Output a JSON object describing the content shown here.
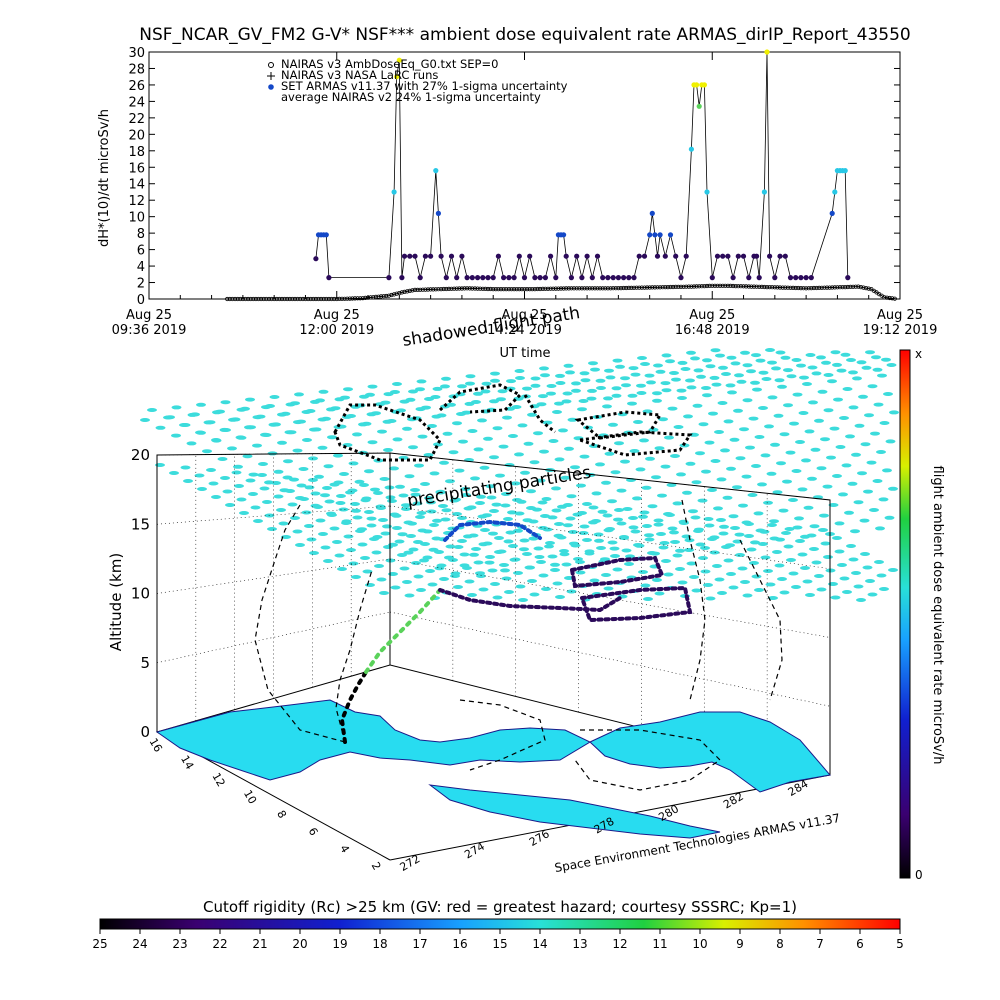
{
  "title": "NSF_NCAR_GV_FM2 G-V* NSF*** ambient dose equivalent rate ARMAS_dirIP_Report_43550",
  "colors": {
    "nairas_v3": "#000000",
    "armas_low": "#2b0a5a",
    "armas_mid": "#1448c8",
    "armas_cyan": "#28c8e6",
    "armas_green": "#5ad25a",
    "armas_yellow": "#f0f000",
    "shadow_grid": "#3cdcdc",
    "terrain": "#28dcf0"
  },
  "chart_data": [
    {
      "type": "line",
      "title": "NSF_NCAR_GV_FM2 G-V* NSF*** ambient dose equivalent rate ARMAS_dirIP_Report_43550",
      "ylabel": "dH*(10)/dt microSv/h",
      "xlabel": "UT time",
      "ylim": [
        0,
        30
      ],
      "yticks": [
        "0",
        "2",
        "4",
        "6",
        "8",
        "10",
        "12",
        "14",
        "16",
        "18",
        "20",
        "22",
        "24",
        "26",
        "28",
        "30"
      ],
      "xticks": [
        {
          "date": "Aug 25",
          "time": "09:36 2019"
        },
        {
          "date": "Aug 25",
          "time": "12:00 2019"
        },
        {
          "date": "Aug 25",
          "time": "14:24 2019"
        },
        {
          "date": "Aug 25",
          "time": "16:48 2019"
        },
        {
          "date": "Aug 25",
          "time": "19:12 2019"
        }
      ],
      "xlim": [
        "09:36",
        "19:12"
      ],
      "legend": [
        {
          "marker": "diamond",
          "label": "NAIRAS v3 AmbDoseEq_G0.txt SEP=0"
        },
        {
          "marker": "plus",
          "label": "NAIRAS v3 NASA LaRC runs"
        },
        {
          "marker": "dot",
          "label": "SET ARMAS v11.37 with 27% 1-sigma uncertainty"
        },
        {
          "marker": "none",
          "label": "average NAIRAS v2 24% 1-sigma uncertainty"
        }
      ],
      "legend_position": "top-left",
      "series": [
        {
          "name": "NAIRAS v3 AmbDoseEq_G0.txt SEP=0",
          "points": [
            [
              "10:36",
              0
            ],
            [
              "11:00",
              0
            ],
            [
              "11:30",
              0
            ],
            [
              "12:00",
              0
            ],
            [
              "12:20",
              0.1
            ],
            [
              "12:40",
              0.4
            ],
            [
              "12:50",
              0.8
            ],
            [
              "13:00",
              1.1
            ],
            [
              "13:20",
              1.2
            ],
            [
              "13:40",
              1.3
            ],
            [
              "14:00",
              1.2
            ],
            [
              "14:30",
              1.2
            ],
            [
              "15:00",
              1.3
            ],
            [
              "15:30",
              1.3
            ],
            [
              "16:00",
              1.4
            ],
            [
              "16:30",
              1.5
            ],
            [
              "16:48",
              1.6
            ],
            [
              "17:00",
              1.6
            ],
            [
              "17:20",
              1.5
            ],
            [
              "17:40",
              1.4
            ],
            [
              "18:00",
              1.3
            ],
            [
              "18:20",
              1.4
            ],
            [
              "18:40",
              1.5
            ],
            [
              "18:50",
              1.2
            ],
            [
              "19:00",
              0.2
            ],
            [
              "19:10",
              0
            ]
          ]
        },
        {
          "name": "SET ARMAS v11.37 with 27% 1-sigma uncertainty",
          "points": [
            [
              "11:44",
              4.9
            ],
            [
              "11:46",
              7.8
            ],
            [
              "11:48",
              7.8
            ],
            [
              "11:50",
              7.8
            ],
            [
              "11:52",
              7.8
            ],
            [
              "11:54",
              2.6
            ],
            [
              "12:40",
              2.6
            ],
            [
              "12:44",
              13
            ],
            [
              "12:46",
              27
            ],
            [
              "12:48",
              29
            ],
            [
              "12:50",
              2.6
            ],
            [
              "12:52",
              5.2
            ],
            [
              "12:56",
              5.2
            ],
            [
              "13:00",
              5.2
            ],
            [
              "13:04",
              2.6
            ],
            [
              "13:08",
              5.2
            ],
            [
              "13:12",
              5.2
            ],
            [
              "13:16",
              15.6
            ],
            [
              "13:18",
              10.4
            ],
            [
              "13:20",
              5.2
            ],
            [
              "13:24",
              2.6
            ],
            [
              "13:28",
              5.2
            ],
            [
              "13:32",
              2.6
            ],
            [
              "13:36",
              5.2
            ],
            [
              "13:40",
              2.6
            ],
            [
              "13:44",
              2.6
            ],
            [
              "13:48",
              2.6
            ],
            [
              "13:52",
              2.6
            ],
            [
              "13:56",
              2.6
            ],
            [
              "14:00",
              2.6
            ],
            [
              "14:04",
              5.2
            ],
            [
              "14:08",
              2.6
            ],
            [
              "14:12",
              2.6
            ],
            [
              "14:16",
              2.6
            ],
            [
              "14:20",
              5.2
            ],
            [
              "14:24",
              2.6
            ],
            [
              "14:28",
              5.2
            ],
            [
              "14:32",
              2.6
            ],
            [
              "14:36",
              2.6
            ],
            [
              "14:40",
              2.6
            ],
            [
              "14:44",
              5.2
            ],
            [
              "14:48",
              2.6
            ],
            [
              "14:50",
              7.8
            ],
            [
              "14:52",
              7.8
            ],
            [
              "14:54",
              7.8
            ],
            [
              "14:56",
              5.2
            ],
            [
              "15:00",
              2.6
            ],
            [
              "15:04",
              5.2
            ],
            [
              "15:08",
              2.6
            ],
            [
              "15:12",
              5.2
            ],
            [
              "15:16",
              2.6
            ],
            [
              "15:20",
              5.2
            ],
            [
              "15:24",
              2.6
            ],
            [
              "15:28",
              2.6
            ],
            [
              "15:32",
              2.6
            ],
            [
              "15:36",
              2.6
            ],
            [
              "15:40",
              2.6
            ],
            [
              "15:44",
              2.6
            ],
            [
              "15:48",
              2.6
            ],
            [
              "15:52",
              5.2
            ],
            [
              "15:56",
              5.2
            ],
            [
              "16:00",
              7.8
            ],
            [
              "16:02",
              10.4
            ],
            [
              "16:04",
              7.8
            ],
            [
              "16:06",
              5.2
            ],
            [
              "16:08",
              7.8
            ],
            [
              "16:12",
              5.2
            ],
            [
              "16:16",
              7.8
            ],
            [
              "16:20",
              5.2
            ],
            [
              "16:24",
              2.6
            ],
            [
              "16:28",
              5.2
            ],
            [
              "16:32",
              18.2
            ],
            [
              "16:34",
              26
            ],
            [
              "16:36",
              26
            ],
            [
              "16:38",
              23.4
            ],
            [
              "16:40",
              26
            ],
            [
              "16:42",
              26
            ],
            [
              "16:44",
              13
            ],
            [
              "16:48",
              2.6
            ],
            [
              "16:52",
              5.2
            ],
            [
              "16:56",
              5.2
            ],
            [
              "17:00",
              5.2
            ],
            [
              "17:04",
              2.6
            ],
            [
              "17:08",
              5.2
            ],
            [
              "17:12",
              5.2
            ],
            [
              "17:16",
              2.6
            ],
            [
              "17:20",
              5.2
            ],
            [
              "17:22",
              5.2
            ],
            [
              "17:24",
              2.6
            ],
            [
              "17:28",
              13
            ],
            [
              "17:30",
              30
            ],
            [
              "17:32",
              5.2
            ],
            [
              "17:36",
              2.6
            ],
            [
              "17:40",
              5.2
            ],
            [
              "17:44",
              5.2
            ],
            [
              "17:48",
              2.6
            ],
            [
              "17:52",
              2.6
            ],
            [
              "17:56",
              2.6
            ],
            [
              "18:00",
              2.6
            ],
            [
              "18:04",
              2.6
            ],
            [
              "18:20",
              10.4
            ],
            [
              "18:22",
              13
            ],
            [
              "18:24",
              15.6
            ],
            [
              "18:26",
              15.6
            ],
            [
              "18:28",
              15.6
            ],
            [
              "18:30",
              15.6
            ],
            [
              "18:32",
              2.6
            ]
          ]
        }
      ]
    },
    {
      "type": "scatter",
      "subtype": "3d-flight-track",
      "zlabel": "Altitude (km)",
      "zticks": [
        "0",
        "5",
        "10",
        "15",
        "20"
      ],
      "xticks": [
        "272",
        "274",
        "276",
        "278",
        "280",
        "282",
        "284"
      ],
      "yticks": [
        "2",
        "4",
        "6",
        "8",
        "10",
        "12",
        "14",
        "16"
      ],
      "ylabel": "",
      "annotations": [
        "shadowed flight path",
        "precipitating particles"
      ],
      "credit": "Space Environment Technologies ARMAS v11.37",
      "colorbar_right": {
        "label": "flight ambient dose equivalent rate microSv/h",
        "top": "x",
        "bottom": "0"
      },
      "colorbar_bottom": {
        "label": "Cutoff rigidity (Rc) >25 km (GV: red = greatest hazard; courtesy SSSRC; Kp=1)",
        "ticks": [
          "25",
          "24",
          "23",
          "22",
          "21",
          "20",
          "19",
          "18",
          "17",
          "16",
          "15",
          "14",
          "13",
          "12",
          "11",
          "10",
          "9",
          "8",
          "7",
          "6",
          "5"
        ]
      }
    }
  ]
}
